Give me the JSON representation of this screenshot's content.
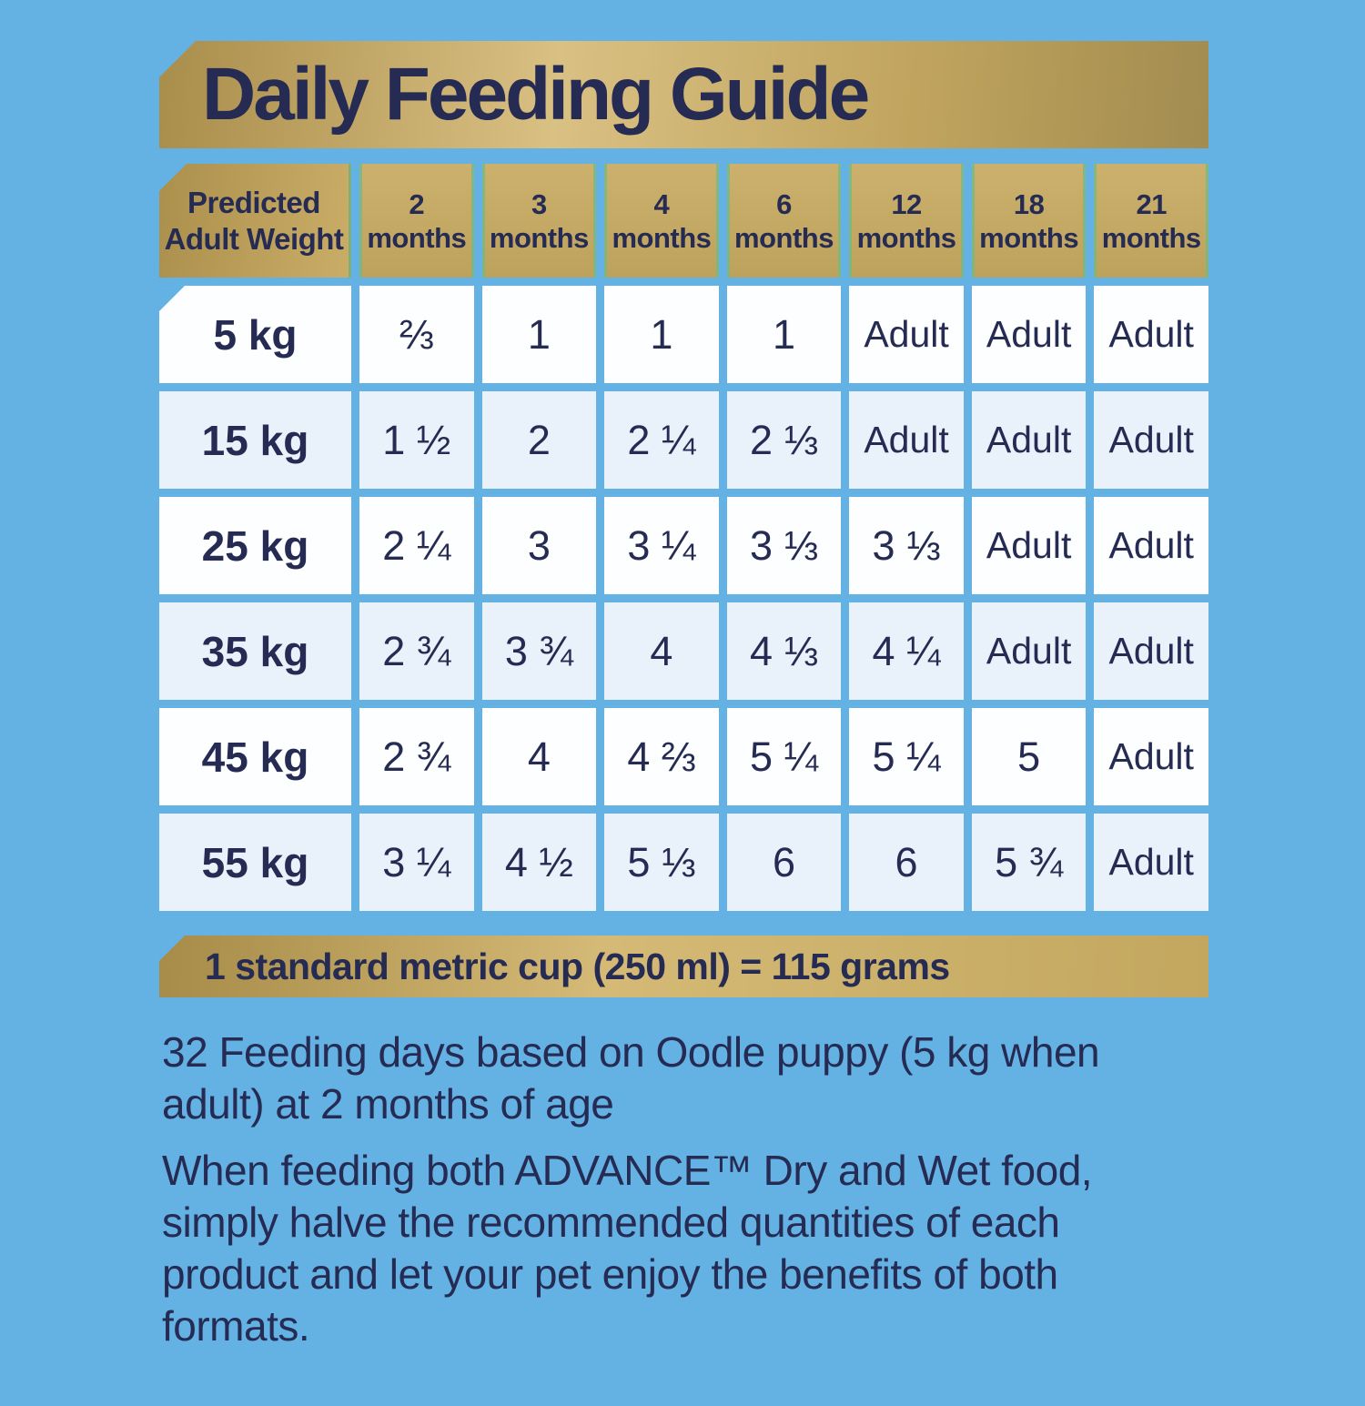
{
  "title": "Daily Feeding Guide",
  "colors": {
    "background": "#64B2E3",
    "text_navy": "#252B52",
    "gold_dark": "#A98D4B",
    "gold_light": "#D9C083",
    "gold_mid": "#C3A75F",
    "header_edge_green": "#6DBA8A",
    "row_white": "#FDFEFF",
    "row_tint": "#E9F2FA"
  },
  "table": {
    "weight_header": {
      "line1": "Predicted",
      "line2": "Adult Weight"
    },
    "age_headers": [
      {
        "value": "2",
        "unit": "months"
      },
      {
        "value": "3",
        "unit": "months"
      },
      {
        "value": "4",
        "unit": "months"
      },
      {
        "value": "6",
        "unit": "months"
      },
      {
        "value": "12",
        "unit": "months"
      },
      {
        "value": "18",
        "unit": "months"
      },
      {
        "value": "21",
        "unit": "months"
      }
    ],
    "rows": [
      {
        "weight": "5 kg",
        "values": [
          "⅔",
          "1",
          "1",
          "1",
          "Adult",
          "Adult",
          "Adult"
        ]
      },
      {
        "weight": "15 kg",
        "values": [
          "1 ½",
          "2",
          "2 ¼",
          "2 ⅓",
          "Adult",
          "Adult",
          "Adult"
        ]
      },
      {
        "weight": "25 kg",
        "values": [
          "2 ¼",
          "3",
          "3 ¼",
          "3 ⅓",
          "3 ⅓",
          "Adult",
          "Adult"
        ]
      },
      {
        "weight": "35 kg",
        "values": [
          "2 ¾",
          "3 ¾",
          "4",
          "4 ⅓",
          "4 ¼",
          "Adult",
          "Adult"
        ]
      },
      {
        "weight": "45 kg",
        "values": [
          "2 ¾",
          "4",
          "4 ⅔",
          "5 ¼",
          "5 ¼",
          "5",
          "Adult"
        ]
      },
      {
        "weight": "55 kg",
        "values": [
          "3 ¼",
          "4 ½",
          "5 ⅓",
          "6",
          "6",
          "5 ¾",
          "Adult"
        ]
      }
    ]
  },
  "cup_note": "1 standard metric cup (250 ml) = 115 grams",
  "notes": [
    {
      "lines": [
        "32 Feeding days based on Oodle puppy (5 kg when",
        "adult) at 2 months of age"
      ]
    },
    {
      "lines": [
        "When feeding both ADVANCE™ Dry and Wet food,",
        "simply halve the recommended quantities of each",
        "product and let your pet enjoy the benefits of both",
        "formats."
      ]
    }
  ]
}
